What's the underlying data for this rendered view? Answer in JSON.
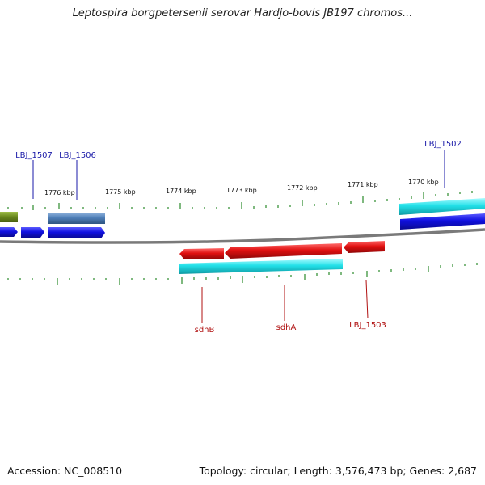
{
  "title": "Leptospira borgpetersenii serovar Hardjo-bovis JB197 chromos...",
  "scale_labels": [
    "1776 kbp",
    "1775 kbp",
    "1774 kbp",
    "1773 kbp",
    "1772 kbp",
    "1771 kbp",
    "1770 kbp"
  ],
  "top_gene_labels": [
    "LBJ_1507",
    "LBJ_1506",
    "LBJ_1502"
  ],
  "bottom_gene_labels": [
    "sdhB",
    "sdhA",
    "LBJ_1503"
  ],
  "footer": {
    "accession": "Accession: NC_008510",
    "summary": "Topology: circular; Length: 3,576,473 bp; Genes: 2,687"
  },
  "colors": {
    "forward_label": "#1a1aa8",
    "reverse_label": "#b01010",
    "tick": "#2a8a2a",
    "backbone": "#888888",
    "cds_blue": "#1010e0",
    "cds_red": "#e01010",
    "gene_cyan": "#22e0e8",
    "gene_steel": "#4f7fb8",
    "gene_olive": "#6b8a1e"
  }
}
